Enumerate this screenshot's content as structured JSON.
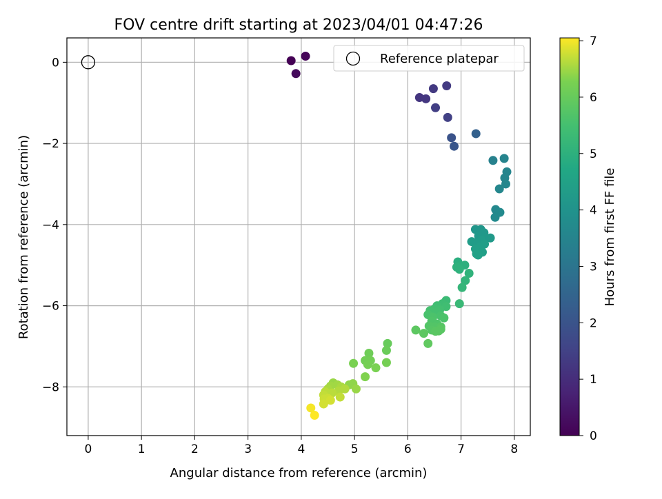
{
  "chart_data": {
    "type": "scatter",
    "title": "FOV centre drift starting at 2023/04/01 04:47:26",
    "xlabel": "Angular distance from reference (arcmin)",
    "ylabel": "Rotation from reference (arcmin)",
    "xlim": [
      -0.4,
      8.3
    ],
    "ylim": [
      -9.2,
      0.6
    ],
    "xticks": [
      0,
      1,
      2,
      3,
      4,
      5,
      6,
      7,
      8
    ],
    "yticks": [
      0,
      -2,
      -4,
      -6,
      -8
    ],
    "grid": true,
    "legend": {
      "position": "top-right",
      "entries": [
        "Reference platepar"
      ]
    },
    "reference_point": {
      "x": 0,
      "y": 0
    },
    "colorbar": {
      "label": "Hours from first FF file",
      "min": 0,
      "max": 7.05,
      "ticks": [
        0,
        1,
        2,
        3,
        4,
        5,
        6,
        7
      ],
      "colormap": "viridis"
    },
    "points": [
      {
        "x": 3.81,
        "y": 0.04,
        "c": 0.0
      },
      {
        "x": 4.08,
        "y": 0.15,
        "c": 0.1
      },
      {
        "x": 3.9,
        "y": -0.28,
        "c": 0.2
      },
      {
        "x": 6.22,
        "y": -0.87,
        "c": 1.2
      },
      {
        "x": 6.34,
        "y": -0.9,
        "c": 1.25
      },
      {
        "x": 6.48,
        "y": -0.65,
        "c": 1.3
      },
      {
        "x": 6.73,
        "y": -0.58,
        "c": 1.35
      },
      {
        "x": 6.52,
        "y": -1.12,
        "c": 1.45
      },
      {
        "x": 6.75,
        "y": -1.36,
        "c": 1.5
      },
      {
        "x": 6.82,
        "y": -1.86,
        "c": 2.0
      },
      {
        "x": 6.87,
        "y": -2.07,
        "c": 2.1
      },
      {
        "x": 7.28,
        "y": -1.76,
        "c": 2.4
      },
      {
        "x": 7.6,
        "y": -2.42,
        "c": 3.4
      },
      {
        "x": 7.81,
        "y": -2.37,
        "c": 3.5
      },
      {
        "x": 7.86,
        "y": -2.7,
        "c": 3.55
      },
      {
        "x": 7.82,
        "y": -2.85,
        "c": 3.55
      },
      {
        "x": 7.84,
        "y": -3.0,
        "c": 3.6
      },
      {
        "x": 7.72,
        "y": -3.12,
        "c": 3.6
      },
      {
        "x": 7.65,
        "y": -3.63,
        "c": 3.65
      },
      {
        "x": 7.73,
        "y": -3.7,
        "c": 3.7
      },
      {
        "x": 7.64,
        "y": -3.82,
        "c": 3.7
      },
      {
        "x": 7.27,
        "y": -4.12,
        "c": 4.1
      },
      {
        "x": 7.37,
        "y": -4.12,
        "c": 4.1
      },
      {
        "x": 7.43,
        "y": -4.2,
        "c": 4.15
      },
      {
        "x": 7.33,
        "y": -4.28,
        "c": 4.15
      },
      {
        "x": 7.45,
        "y": -4.33,
        "c": 4.2
      },
      {
        "x": 7.55,
        "y": -4.33,
        "c": 4.2
      },
      {
        "x": 7.38,
        "y": -4.38,
        "c": 4.25
      },
      {
        "x": 7.2,
        "y": -4.42,
        "c": 4.3
      },
      {
        "x": 7.3,
        "y": -4.45,
        "c": 4.3
      },
      {
        "x": 7.44,
        "y": -4.48,
        "c": 4.35
      },
      {
        "x": 7.35,
        "y": -4.55,
        "c": 4.35
      },
      {
        "x": 7.27,
        "y": -4.6,
        "c": 4.4
      },
      {
        "x": 7.4,
        "y": -4.68,
        "c": 4.4
      },
      {
        "x": 7.32,
        "y": -4.75,
        "c": 4.45
      },
      {
        "x": 7.29,
        "y": -4.72,
        "c": 4.45
      },
      {
        "x": 6.94,
        "y": -4.92,
        "c": 4.9
      },
      {
        "x": 6.98,
        "y": -5.02,
        "c": 4.95
      },
      {
        "x": 7.07,
        "y": -5.0,
        "c": 4.95
      },
      {
        "x": 6.92,
        "y": -5.05,
        "c": 5.0
      },
      {
        "x": 6.97,
        "y": -5.1,
        "c": 5.0
      },
      {
        "x": 7.15,
        "y": -5.2,
        "c": 5.05
      },
      {
        "x": 7.08,
        "y": -5.38,
        "c": 5.1
      },
      {
        "x": 7.02,
        "y": -5.55,
        "c": 5.15
      },
      {
        "x": 6.97,
        "y": -5.95,
        "c": 5.25
      },
      {
        "x": 6.72,
        "y": -5.87,
        "c": 5.3
      },
      {
        "x": 6.65,
        "y": -5.95,
        "c": 5.35
      },
      {
        "x": 6.55,
        "y": -6.0,
        "c": 5.4
      },
      {
        "x": 6.72,
        "y": -6.02,
        "c": 5.4
      },
      {
        "x": 6.5,
        "y": -6.08,
        "c": 5.45
      },
      {
        "x": 6.6,
        "y": -6.1,
        "c": 5.45
      },
      {
        "x": 6.42,
        "y": -6.12,
        "c": 5.5
      },
      {
        "x": 6.55,
        "y": -6.15,
        "c": 5.5
      },
      {
        "x": 6.38,
        "y": -6.22,
        "c": 5.55
      },
      {
        "x": 6.62,
        "y": -6.25,
        "c": 5.55
      },
      {
        "x": 6.47,
        "y": -6.28,
        "c": 5.6
      },
      {
        "x": 6.68,
        "y": -6.3,
        "c": 5.6
      },
      {
        "x": 6.45,
        "y": -6.38,
        "c": 5.65
      },
      {
        "x": 6.55,
        "y": -6.45,
        "c": 5.65
      },
      {
        "x": 6.4,
        "y": -6.5,
        "c": 5.7
      },
      {
        "x": 6.5,
        "y": -6.52,
        "c": 5.7
      },
      {
        "x": 6.62,
        "y": -6.52,
        "c": 5.75
      },
      {
        "x": 6.45,
        "y": -6.6,
        "c": 5.75
      },
      {
        "x": 6.58,
        "y": -6.62,
        "c": 5.8
      },
      {
        "x": 6.52,
        "y": -6.63,
        "c": 5.8
      },
      {
        "x": 6.62,
        "y": -6.58,
        "c": 5.8
      },
      {
        "x": 6.15,
        "y": -6.6,
        "c": 5.85
      },
      {
        "x": 6.3,
        "y": -6.68,
        "c": 5.85
      },
      {
        "x": 6.38,
        "y": -6.93,
        "c": 5.9
      },
      {
        "x": 5.62,
        "y": -6.93,
        "c": 6.0
      },
      {
        "x": 5.6,
        "y": -7.1,
        "c": 6.05
      },
      {
        "x": 5.27,
        "y": -7.17,
        "c": 6.1
      },
      {
        "x": 5.2,
        "y": -7.35,
        "c": 6.15
      },
      {
        "x": 5.3,
        "y": -7.35,
        "c": 6.15
      },
      {
        "x": 5.25,
        "y": -7.45,
        "c": 6.2
      },
      {
        "x": 5.6,
        "y": -7.4,
        "c": 6.2
      },
      {
        "x": 4.98,
        "y": -7.42,
        "c": 6.25
      },
      {
        "x": 5.4,
        "y": -7.53,
        "c": 6.25
      },
      {
        "x": 5.2,
        "y": -7.75,
        "c": 6.3
      },
      {
        "x": 4.97,
        "y": -7.92,
        "c": 6.4
      },
      {
        "x": 4.9,
        "y": -7.95,
        "c": 6.4
      },
      {
        "x": 5.03,
        "y": -8.05,
        "c": 6.45
      },
      {
        "x": 4.6,
        "y": -7.9,
        "c": 6.45
      },
      {
        "x": 4.68,
        "y": -7.95,
        "c": 6.5
      },
      {
        "x": 4.55,
        "y": -7.98,
        "c": 6.5
      },
      {
        "x": 4.75,
        "y": -8.0,
        "c": 6.55
      },
      {
        "x": 4.5,
        "y": -8.05,
        "c": 6.55
      },
      {
        "x": 4.82,
        "y": -8.05,
        "c": 6.6
      },
      {
        "x": 4.7,
        "y": -8.1,
        "c": 6.6
      },
      {
        "x": 4.45,
        "y": -8.12,
        "c": 6.65
      },
      {
        "x": 4.58,
        "y": -8.15,
        "c": 6.65
      },
      {
        "x": 4.42,
        "y": -8.2,
        "c": 6.7
      },
      {
        "x": 4.73,
        "y": -8.25,
        "c": 6.7
      },
      {
        "x": 4.5,
        "y": -8.28,
        "c": 6.75
      },
      {
        "x": 4.43,
        "y": -8.3,
        "c": 6.75
      },
      {
        "x": 4.55,
        "y": -8.33,
        "c": 6.8
      },
      {
        "x": 4.42,
        "y": -8.42,
        "c": 6.8
      },
      {
        "x": 4.18,
        "y": -8.52,
        "c": 7.0
      },
      {
        "x": 4.25,
        "y": -8.7,
        "c": 7.05
      }
    ]
  }
}
